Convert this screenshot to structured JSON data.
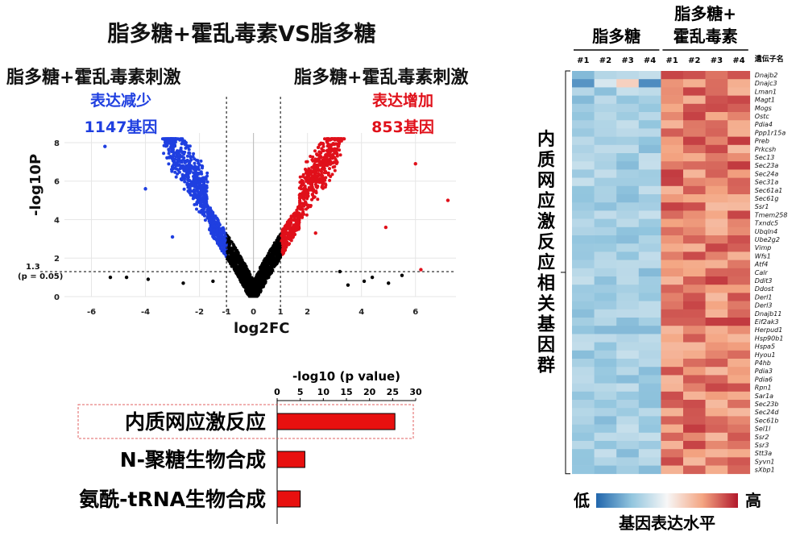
{
  "volcano": {
    "title": "脂多糖+霍乱毒素VS脂多糖",
    "left_label": "脂多糖+霍乱毒素刺激",
    "right_label": "脂多糖+霍乱毒素刺激",
    "down_label": "表达减少",
    "down_count": "1147基因",
    "up_label": "表达增加",
    "up_count": "853基因",
    "ylabel": "-log10P",
    "xlabel": "log2FC",
    "threshold_label": "1.3",
    "threshold_note": "(p = 0.05)",
    "xticks": [
      "-6",
      "-4",
      "-2",
      "-1",
      "0",
      "1",
      "2",
      "4",
      "6"
    ],
    "yticks": [
      "0",
      "2",
      "4",
      "6",
      "8"
    ],
    "colors": {
      "down": "#1f3fe0",
      "up": "#e0101a",
      "ns": "#000000"
    }
  },
  "chart_data": [
    {
      "type": "scatter",
      "title": "脂多糖+霍乱毒素VS脂多糖",
      "xlabel": "log2FC",
      "ylabel": "-log10P",
      "xlim": [
        -7,
        7.5
      ],
      "ylim": [
        0,
        8.5
      ],
      "thresholds": {
        "x": [
          -1,
          1
        ],
        "y": 1.3
      },
      "series": [
        {
          "name": "表达减少",
          "count": 1147
        },
        {
          "name": "表达增加",
          "count": 853
        }
      ],
      "outliers": [
        {
          "x": -5.5,
          "y": 7.8
        },
        {
          "x": 6,
          "y": 6.9
        },
        {
          "x": 7.2,
          "y": 5
        },
        {
          "x": -4,
          "y": 5.6
        },
        {
          "x": -3,
          "y": 3.1
        },
        {
          "x": -5.3,
          "y": 1
        },
        {
          "x": -4.7,
          "y": 1
        },
        {
          "x": -3.9,
          "y": 0.9
        },
        {
          "x": -2.6,
          "y": 0.7
        },
        {
          "x": -1.5,
          "y": 0.8
        },
        {
          "x": 3.2,
          "y": 1.3
        },
        {
          "x": 3.5,
          "y": 0.6
        },
        {
          "x": 4.1,
          "y": 0.8
        },
        {
          "x": 4.4,
          "y": 1
        },
        {
          "x": 5.5,
          "y": 1.1
        },
        {
          "x": 6.2,
          "y": 1.4
        },
        {
          "x": 5,
          "y": 0.7
        },
        {
          "x": 4.9,
          "y": 3.6
        },
        {
          "x": 2.3,
          "y": 3.3
        }
      ]
    },
    {
      "type": "bar",
      "title": "-log10 (p value)",
      "categories": [
        "内质网应激反应",
        "N-聚糖生物合成",
        "氨酰-tRNA生物合成"
      ],
      "values": [
        25.5,
        6,
        5
      ],
      "xlim": [
        0,
        30
      ],
      "xticks": [
        "0",
        "5",
        "10",
        "15",
        "20",
        "25",
        "30"
      ],
      "highlight": "内质网应激反应",
      "color": "#e8100f"
    },
    {
      "type": "heatmap",
      "group_labels": [
        "脂多糖",
        "脂多糖+",
        "霍乱毒素"
      ],
      "columns": [
        "#1",
        "#2",
        "#3",
        "#4",
        "#1",
        "#2",
        "#3",
        "#4"
      ],
      "gene_header": "遺伝子名",
      "side_label": "内质网应激反应相关基因群",
      "legend_low": "低",
      "legend_high": "高",
      "legend_title": "基因表达水平",
      "genes": [
        "Dnajb2",
        "Dnajc3",
        "Lman1",
        "Magt1",
        "Mogs",
        "Ostc",
        "Pdia4",
        "Ppp1r15a",
        "Preb",
        "Prkcsh",
        "Sec13",
        "Sec23a",
        "Sec24a",
        "Sec31a",
        "Sec61a1",
        "Sec61g",
        "Ssr1",
        "Tmem258",
        "Txndc5",
        "Ubqln4",
        "Ube2g2",
        "Vimp",
        "Wfs1",
        "Atf4",
        "Calr",
        "Ddit3",
        "Ddost",
        "Derl1",
        "Derl3",
        "Dnajb11",
        "Eif2ak3",
        "Herpud1",
        "Hsp90b1",
        "Hspa5",
        "Hyou1",
        "P4hb",
        "Pdia3",
        "Pdia6",
        "Rpn1",
        "Sar1a",
        "Sec23b",
        "Sec24d",
        "Sec61b",
        "Sel1l",
        "Ssr2",
        "Ssr3",
        "Stt3a",
        "Syvn1",
        "sXbp1"
      ]
    }
  ]
}
